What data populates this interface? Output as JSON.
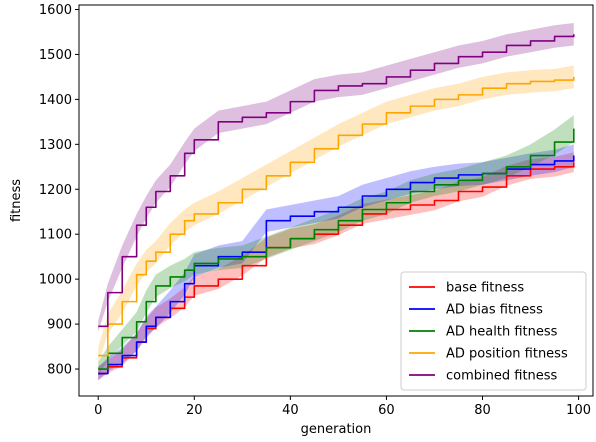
{
  "chart_data": {
    "type": "line",
    "xlabel": "generation",
    "ylabel": "fitness",
    "xlim": [
      -4,
      103
    ],
    "ylim": [
      740,
      1610
    ],
    "x_ticks": [
      0,
      20,
      40,
      60,
      80,
      100
    ],
    "y_ticks": [
      800,
      900,
      1000,
      1100,
      1200,
      1300,
      1400,
      1500,
      1600
    ],
    "grid": false,
    "legend_position": "lower-right",
    "series": [
      {
        "name": "base fitness",
        "color": "#ff0000",
        "x": [
          0,
          2,
          5,
          8,
          10,
          12,
          15,
          18,
          20,
          25,
          30,
          35,
          40,
          45,
          50,
          55,
          60,
          65,
          70,
          75,
          80,
          85,
          90,
          95,
          99
        ],
        "y": [
          790,
          805,
          825,
          860,
          890,
          915,
          935,
          960,
          985,
          1000,
          1030,
          1070,
          1090,
          1100,
          1120,
          1145,
          1155,
          1165,
          1175,
          1195,
          1205,
          1230,
          1245,
          1250,
          1260
        ],
        "band": [
          15,
          15,
          18,
          20,
          22,
          22,
          22,
          22,
          22,
          22,
          22,
          22,
          22,
          22,
          22,
          22,
          22,
          22,
          22,
          22,
          22,
          22,
          22,
          22,
          22
        ]
      },
      {
        "name": "AD bias fitness",
        "color": "#0000ff",
        "x": [
          0,
          2,
          5,
          8,
          10,
          12,
          15,
          18,
          20,
          25,
          30,
          35,
          40,
          45,
          50,
          55,
          60,
          65,
          70,
          75,
          80,
          85,
          90,
          95,
          99
        ],
        "y": [
          790,
          810,
          830,
          860,
          895,
          915,
          950,
          990,
          1030,
          1050,
          1060,
          1130,
          1140,
          1150,
          1160,
          1185,
          1200,
          1215,
          1225,
          1232,
          1235,
          1245,
          1255,
          1263,
          1275
        ],
        "band": [
          15,
          15,
          18,
          20,
          22,
          24,
          25,
          25,
          25,
          25,
          25,
          25,
          25,
          25,
          25,
          25,
          25,
          25,
          25,
          25,
          25,
          25,
          25,
          25,
          25
        ]
      },
      {
        "name": "AD health fitness",
        "color": "#008000",
        "x": [
          0,
          2,
          5,
          8,
          10,
          12,
          15,
          18,
          20,
          25,
          30,
          35,
          40,
          45,
          50,
          55,
          60,
          65,
          70,
          75,
          80,
          85,
          90,
          95,
          99
        ],
        "y": [
          800,
          835,
          870,
          905,
          950,
          985,
          1005,
          1020,
          1035,
          1045,
          1050,
          1070,
          1090,
          1110,
          1130,
          1155,
          1170,
          1195,
          1210,
          1220,
          1235,
          1250,
          1275,
          1305,
          1335
        ],
        "band": [
          15,
          15,
          18,
          22,
          25,
          25,
          25,
          25,
          25,
          25,
          25,
          25,
          25,
          25,
          25,
          25,
          25,
          25,
          25,
          25,
          25,
          25,
          25,
          28,
          30
        ]
      },
      {
        "name": "AD position fitness",
        "color": "#ffa500",
        "x": [
          0,
          2,
          5,
          8,
          10,
          12,
          15,
          18,
          20,
          25,
          30,
          35,
          40,
          45,
          50,
          55,
          60,
          65,
          70,
          75,
          80,
          85,
          90,
          95,
          99
        ],
        "y": [
          830,
          900,
          950,
          1010,
          1040,
          1060,
          1100,
          1130,
          1145,
          1170,
          1200,
          1230,
          1260,
          1290,
          1320,
          1345,
          1370,
          1385,
          1400,
          1410,
          1425,
          1435,
          1440,
          1443,
          1450
        ],
        "band": [
          18,
          22,
          25,
          25,
          25,
          25,
          25,
          25,
          25,
          25,
          25,
          25,
          25,
          25,
          25,
          25,
          25,
          25,
          25,
          25,
          25,
          25,
          25,
          25,
          25
        ]
      },
      {
        "name": "combined fitness",
        "color": "#800080",
        "x": [
          0,
          2,
          5,
          8,
          10,
          12,
          15,
          18,
          20,
          25,
          30,
          35,
          40,
          45,
          50,
          55,
          60,
          65,
          70,
          75,
          80,
          85,
          90,
          95,
          99
        ],
        "y": [
          895,
          970,
          1050,
          1120,
          1160,
          1195,
          1230,
          1280,
          1310,
          1350,
          1360,
          1370,
          1395,
          1420,
          1430,
          1435,
          1450,
          1465,
          1480,
          1495,
          1505,
          1520,
          1530,
          1540,
          1545
        ],
        "band": [
          12,
          20,
          25,
          25,
          25,
          25,
          25,
          25,
          25,
          25,
          25,
          25,
          25,
          25,
          25,
          25,
          25,
          25,
          25,
          25,
          25,
          25,
          25,
          25,
          25
        ]
      }
    ]
  }
}
